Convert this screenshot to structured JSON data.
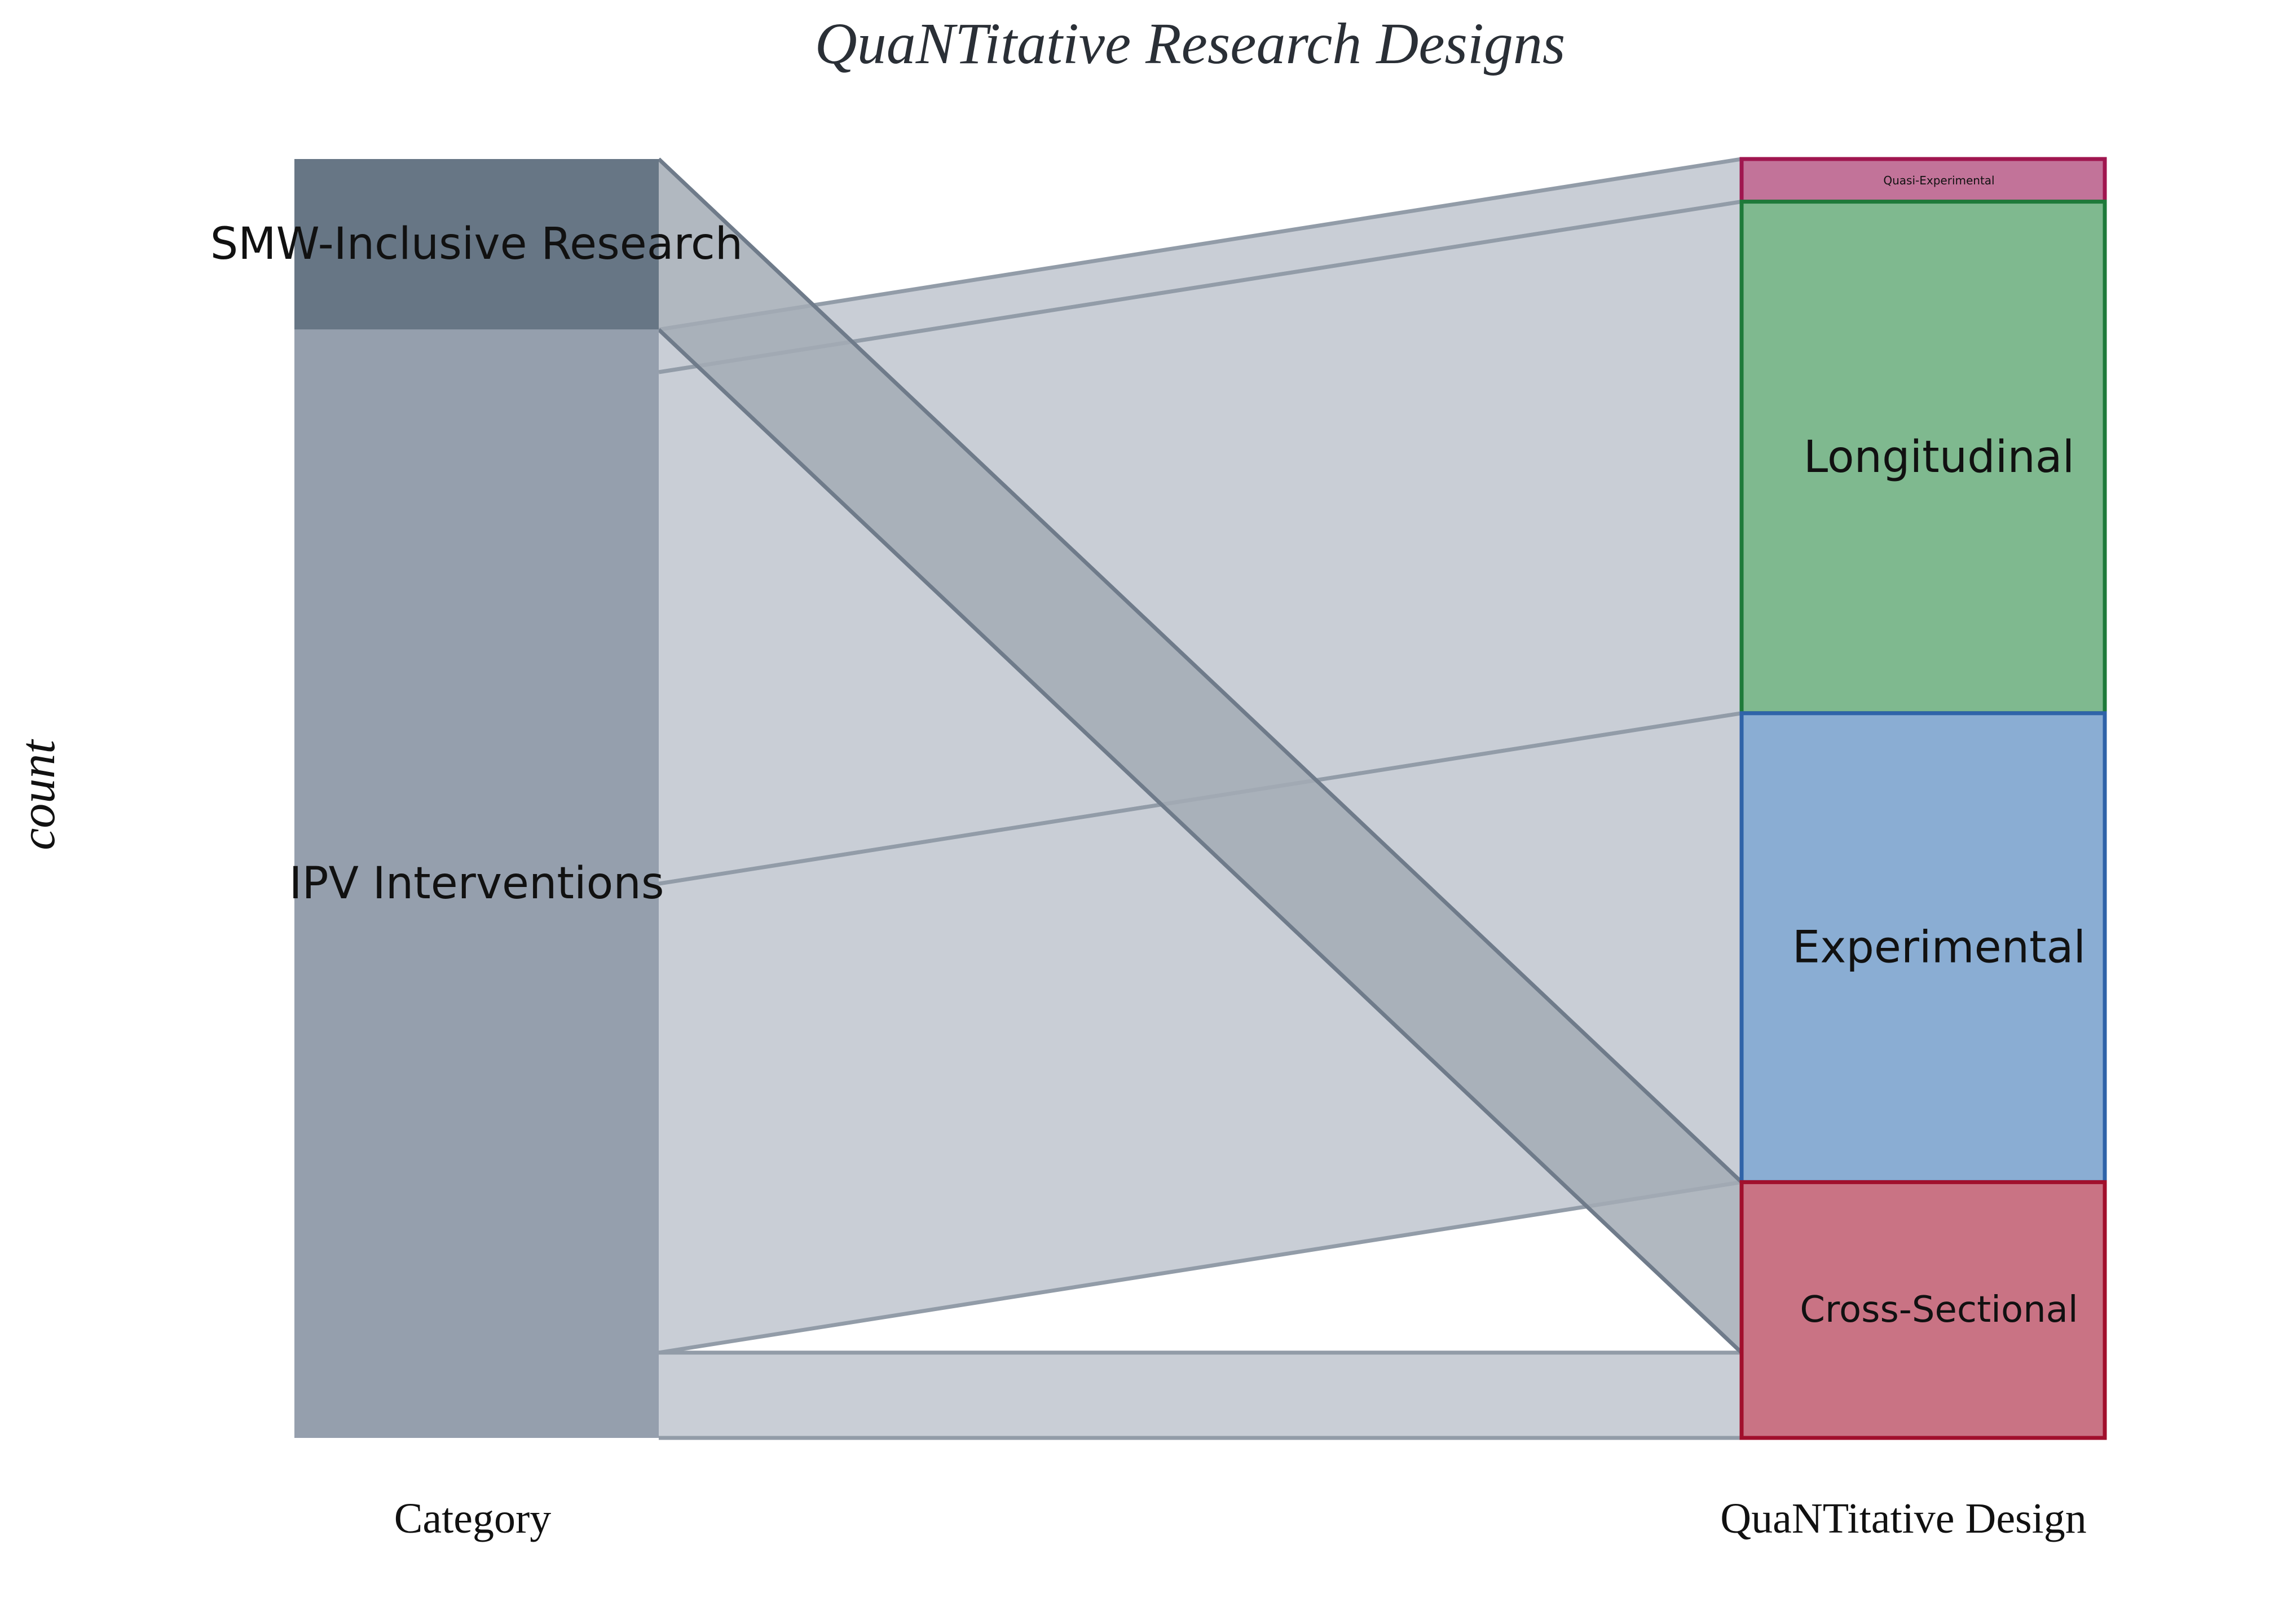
{
  "chart_data": {
    "type": "alluvial",
    "title": "QuaNTitative Research Designs",
    "ylabel": "count",
    "axes": [
      "Category",
      "QuaNTitative Design"
    ],
    "left_nodes": [
      {
        "name": "SMW-Inclusive Research",
        "color": "#677685"
      },
      {
        "name": "IPV Interventions",
        "color": "#959fad"
      }
    ],
    "right_nodes": [
      {
        "name": "Quasi-Experimental",
        "fill": "#c27399",
        "stroke": "#a0164f"
      },
      {
        "name": "Longitudinal",
        "fill": "#7fb98f",
        "stroke": "#1e7a3a"
      },
      {
        "name": "Experimental",
        "fill": "#8aadd3",
        "stroke": "#2f63a8"
      },
      {
        "name": "Cross-Sectional",
        "fill": "#c97384",
        "stroke": "#a10f2c"
      }
    ],
    "flows": [
      {
        "from": "SMW-Inclusive Research",
        "to": "Quasi-Experimental",
        "value": 0
      },
      {
        "from": "SMW-Inclusive Research",
        "to": "Longitudinal",
        "value": 0
      },
      {
        "from": "SMW-Inclusive Research",
        "to": "Experimental",
        "value": 0
      },
      {
        "from": "SMW-Inclusive Research",
        "to": "Cross-Sectional",
        "value": 4
      },
      {
        "from": "IPV Interventions",
        "to": "Quasi-Experimental",
        "value": 1
      },
      {
        "from": "IPV Interventions",
        "to": "Longitudinal",
        "value": 12
      },
      {
        "from": "IPV Interventions",
        "to": "Experimental",
        "value": 11
      },
      {
        "from": "IPV Interventions",
        "to": "Cross-Sectional",
        "value": 2
      }
    ],
    "colors": {
      "flow_fill": "#c9ced6",
      "flow_stroke": "#929ca8",
      "smw_flow_fill": "#a3abb5",
      "smw_flow_stroke": "#6f7b8a"
    }
  }
}
